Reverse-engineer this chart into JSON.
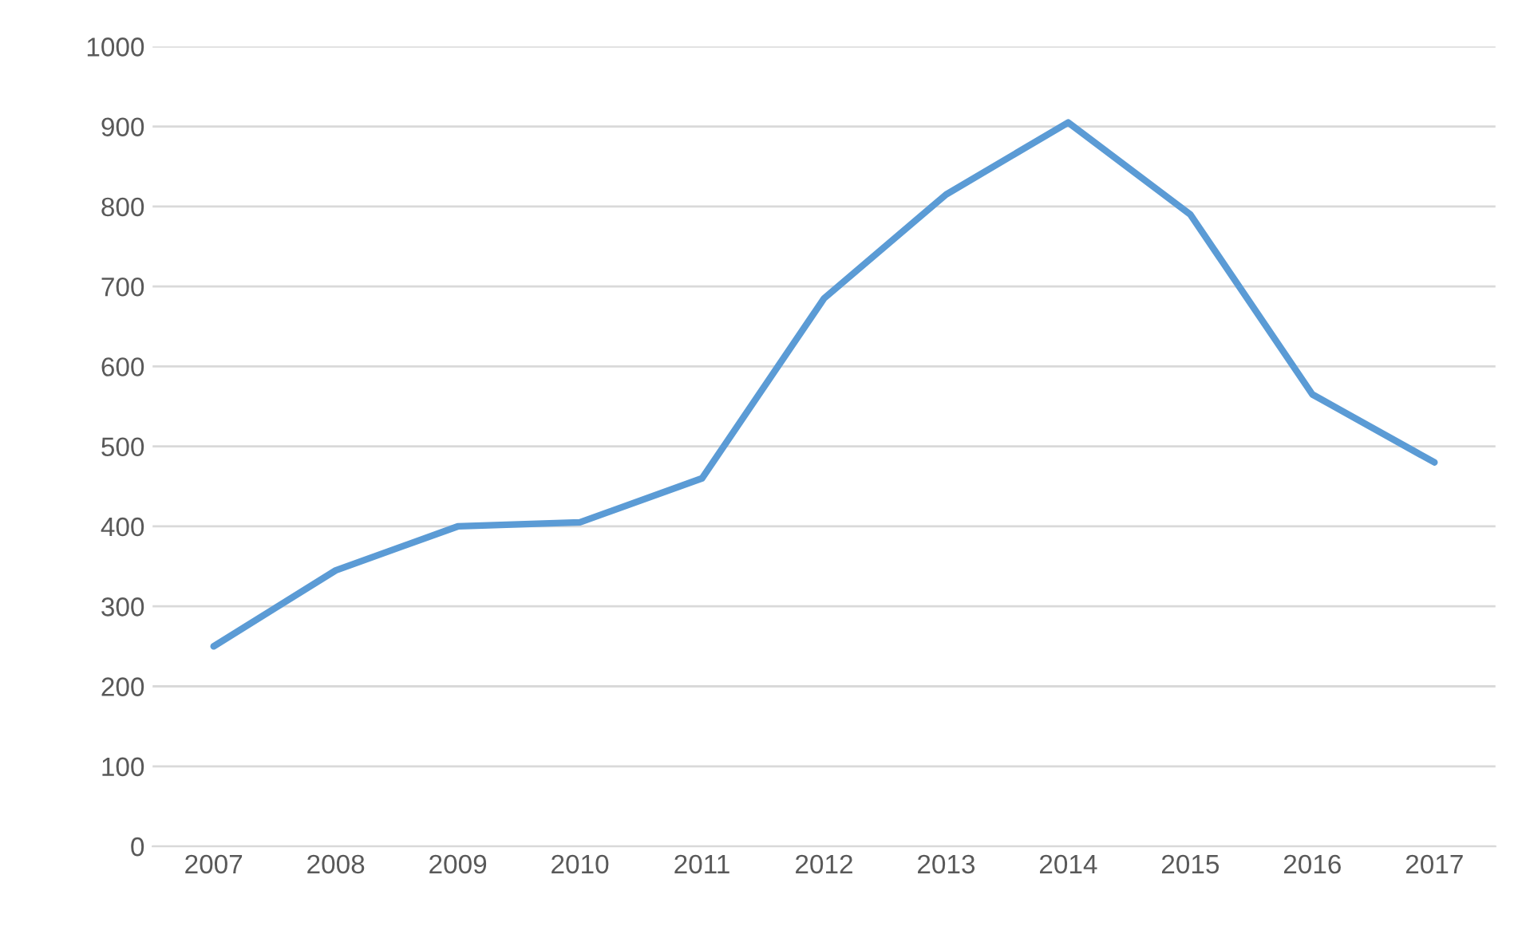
{
  "chart_data": {
    "type": "line",
    "categories": [
      "2007",
      "2008",
      "2009",
      "2010",
      "2011",
      "2012",
      "2013",
      "2014",
      "2015",
      "2016",
      "2017"
    ],
    "series": [
      {
        "color": "#5b9bd5",
        "values": [
          250,
          345,
          400,
          405,
          460,
          685,
          815,
          905,
          790,
          565,
          480
        ]
      }
    ],
    "ylim": [
      0,
      1000
    ],
    "yticks": [
      0,
      100,
      200,
      300,
      400,
      500,
      600,
      700,
      800,
      900,
      1000
    ],
    "grid": "y",
    "legend": false,
    "marker": "none",
    "line_style": "solid"
  }
}
